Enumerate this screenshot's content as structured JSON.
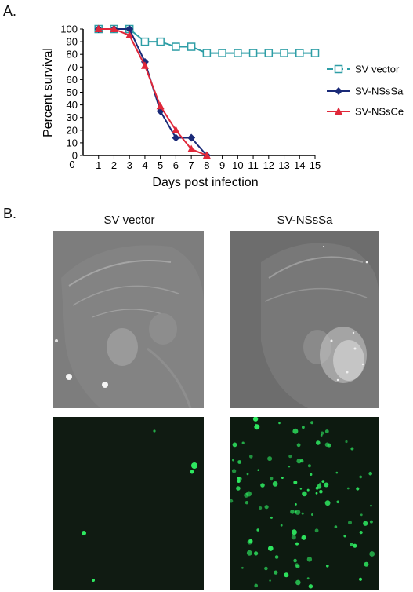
{
  "panels": {
    "a_label": "A.",
    "b_label": "B."
  },
  "chart_data": {
    "type": "line",
    "xlabel": "Days post infection",
    "ylabel": "Percent survival",
    "x_ticks": [
      1,
      2,
      3,
      4,
      5,
      6,
      7,
      8,
      9,
      10,
      11,
      12,
      13,
      14,
      15
    ],
    "y_ticks": [
      0,
      10,
      20,
      30,
      40,
      50,
      60,
      70,
      80,
      90,
      100
    ],
    "xlim": [
      0,
      15
    ],
    "ylim": [
      0,
      100
    ],
    "grid": false,
    "legend_position": "right",
    "series": [
      {
        "name": "SV vector",
        "color": "#2e9ea6",
        "marker": "open-square",
        "dashed_legend": true,
        "x": [
          1,
          2,
          3,
          4,
          5,
          6,
          7,
          8,
          9,
          10,
          11,
          12,
          13,
          14,
          15
        ],
        "y": [
          100,
          100,
          100,
          90,
          90,
          86,
          86,
          81,
          81,
          81,
          81,
          81,
          81,
          81,
          81
        ]
      },
      {
        "name": "SV-NSsSa",
        "color": "#1a2a78",
        "marker": "diamond",
        "x": [
          1,
          2,
          3,
          4,
          5,
          6,
          7,
          8
        ],
        "y": [
          100,
          100,
          100,
          74,
          35,
          14,
          14,
          0
        ]
      },
      {
        "name": "SV-NSsCe",
        "color": "#e0283a",
        "marker": "triangle",
        "x": [
          1,
          2,
          3,
          4,
          5,
          6,
          7,
          8
        ],
        "y": [
          100,
          100,
          95,
          71,
          39,
          20,
          5,
          0
        ]
      }
    ]
  },
  "images": {
    "left_title": "SV vector",
    "right_title": "SV-NSsSa"
  },
  "colors": {
    "grayscale_bg_left": "#7b7b7b",
    "grayscale_bg_right": "#6c6c6c",
    "fluorescence_green": "#2ee860"
  }
}
